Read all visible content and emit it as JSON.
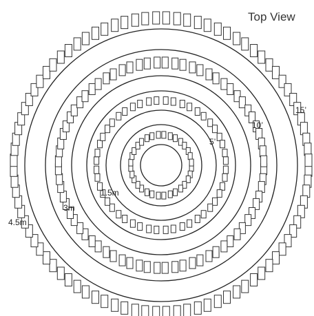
{
  "title": "Top View",
  "rings": [
    {
      "name": "inner",
      "label_ft": "",
      "label_m": ""
    },
    {
      "name": "ring-5ft-1.5m",
      "label_ft": "5’",
      "label_m": "1.5m"
    },
    {
      "name": "ring-10ft-3m",
      "label_ft": "10’",
      "label_m": "3m"
    },
    {
      "name": "ring-15ft-4.5m",
      "label_ft": "15’",
      "label_m": "4.5m"
    }
  ],
  "colors": {
    "line": "#222222",
    "chair_fill": "#ffffff",
    "background": "#ffffff"
  }
}
